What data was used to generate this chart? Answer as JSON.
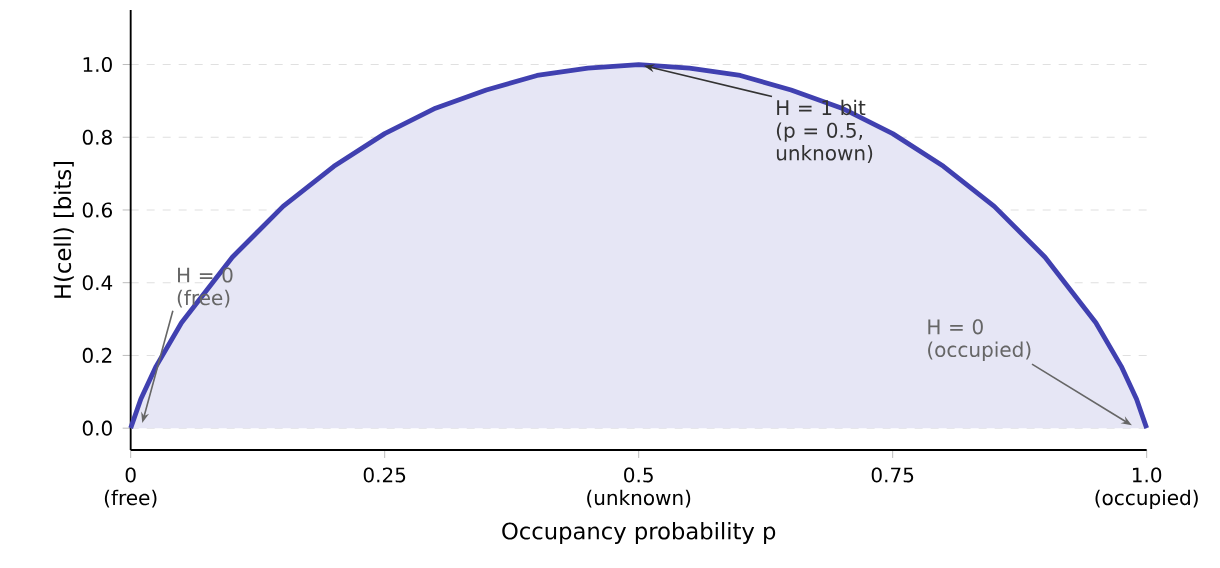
{
  "chart_data": {
    "type": "area",
    "xlabel": "Occupancy probability  p",
    "ylabel": "H(cell)  [bits]",
    "x": [
      0,
      0.01,
      0.025,
      0.05,
      0.075,
      0.1,
      0.15,
      0.2,
      0.25,
      0.3,
      0.35,
      0.4,
      0.45,
      0.5,
      0.55,
      0.6,
      0.65,
      0.7,
      0.75,
      0.8,
      0.85,
      0.9,
      0.925,
      0.95,
      0.975,
      0.99,
      1
    ],
    "series": [
      {
        "color": "#4040b0",
        "values": [
          0,
          0.08,
          0.17,
          0.29,
          0.38,
          0.47,
          0.61,
          0.72,
          0.81,
          0.88,
          0.93,
          0.97,
          0.99,
          1.0,
          0.99,
          0.97,
          0.93,
          0.88,
          0.81,
          0.72,
          0.61,
          0.47,
          0.38,
          0.29,
          0.17,
          0.08,
          0
        ]
      }
    ],
    "xlim": [
      0,
      1
    ],
    "ylim": [
      -0.06,
      1.15
    ],
    "xticks": [
      {
        "value": 0,
        "label": "0\n(free)"
      },
      0.25,
      {
        "value": 0.5,
        "label": "0.5\n(unknown)"
      },
      0.75,
      {
        "value": 1,
        "label": "1.0\n(occupied)"
      }
    ],
    "yticks": [
      {
        "value": 0,
        "label": "0.0"
      },
      {
        "value": 0.2,
        "label": "0.2"
      },
      {
        "value": 0.4,
        "label": "0.4"
      },
      {
        "value": 0.6,
        "label": "0.6"
      },
      {
        "value": 0.8,
        "label": "0.8"
      },
      {
        "value": 1,
        "label": "1.0"
      }
    ],
    "grid": "y",
    "annotations": [
      {
        "text": "H = 1 bit\n(p = 0.5, unknown)",
        "x": 0.5,
        "y": 1.0
      },
      {
        "text": "H = 0\n(free)",
        "x": 0.01,
        "y": 0
      },
      {
        "text": "H = 0\n(occupied)",
        "x": 0.99,
        "y": 0
      }
    ]
  }
}
